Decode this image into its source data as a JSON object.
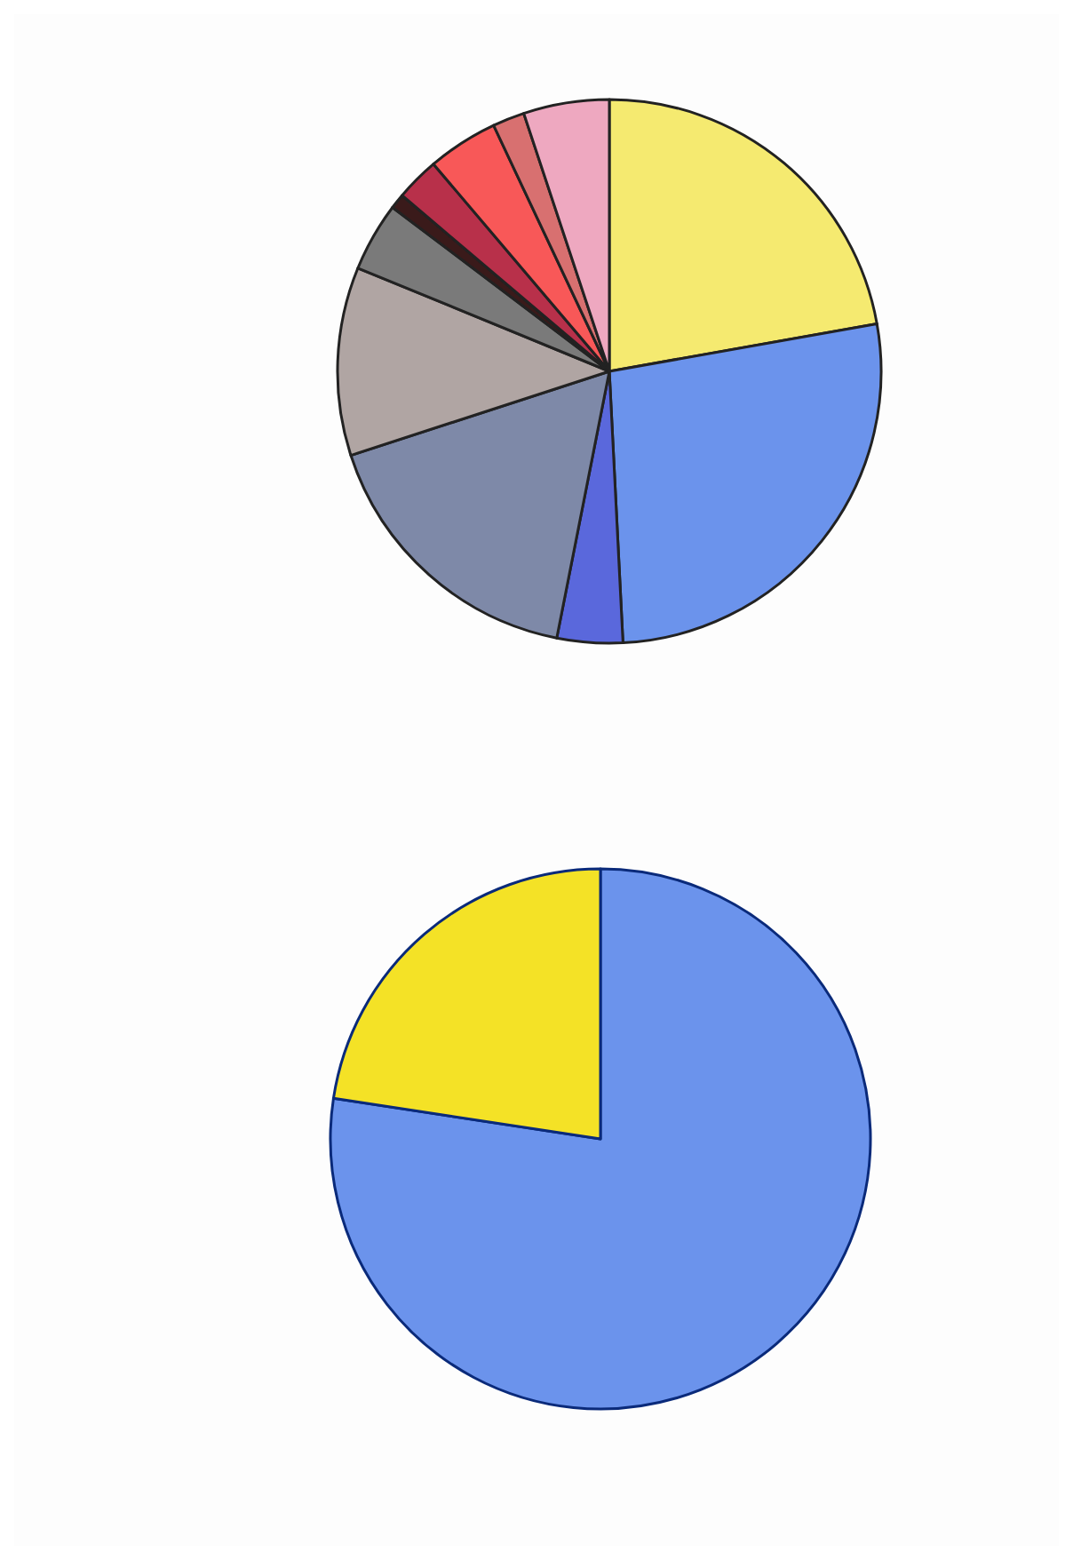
{
  "chart_data": [
    {
      "type": "pie",
      "categories": [
        null,
        null,
        null,
        null,
        null,
        null,
        null,
        null,
        null,
        null,
        null
      ],
      "values": [
        22.2,
        27.0,
        3.9,
        16.9,
        11.2,
        4.1,
        0.9,
        2.6,
        4.2,
        1.9,
        5.1
      ],
      "colors": [
        "#f5ea70",
        "#6b93ec",
        "#5a68dc",
        "#7e89a8",
        "#b0a5a3",
        "#7a7a7a",
        "#3a1a1a",
        "#b8304a",
        "#f85858",
        "#d87070",
        "#eea8c0"
      ]
    },
    {
      "type": "pie",
      "categories": [
        null,
        null
      ],
      "values": [
        77.4,
        22.6
      ],
      "colors": [
        "#6b93ec",
        "#f4e226"
      ]
    }
  ]
}
